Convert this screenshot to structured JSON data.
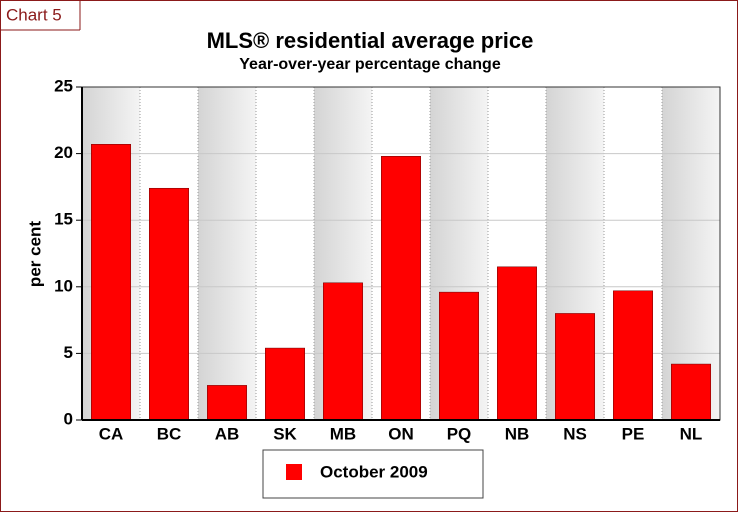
{
  "chart_label": "Chart 5",
  "chart_data": {
    "type": "bar",
    "title": "MLS® residential average price",
    "subtitle": "Year-over-year percentage change",
    "y_label": "per cent",
    "categories": [
      "CA",
      "BC",
      "AB",
      "SK",
      "MB",
      "ON",
      "PQ",
      "NB",
      "NS",
      "PE",
      "NL"
    ],
    "series": [
      {
        "name": "October 2009",
        "color": "#ff0000",
        "values": [
          20.7,
          17.4,
          2.6,
          5.4,
          10.3,
          19.8,
          9.6,
          11.5,
          8.0,
          9.7,
          4.2
        ]
      }
    ],
    "ylim": [
      0,
      25
    ],
    "yticks": [
      0,
      5,
      10,
      15,
      20,
      25
    ],
    "grid": true,
    "legend": "bottom"
  }
}
